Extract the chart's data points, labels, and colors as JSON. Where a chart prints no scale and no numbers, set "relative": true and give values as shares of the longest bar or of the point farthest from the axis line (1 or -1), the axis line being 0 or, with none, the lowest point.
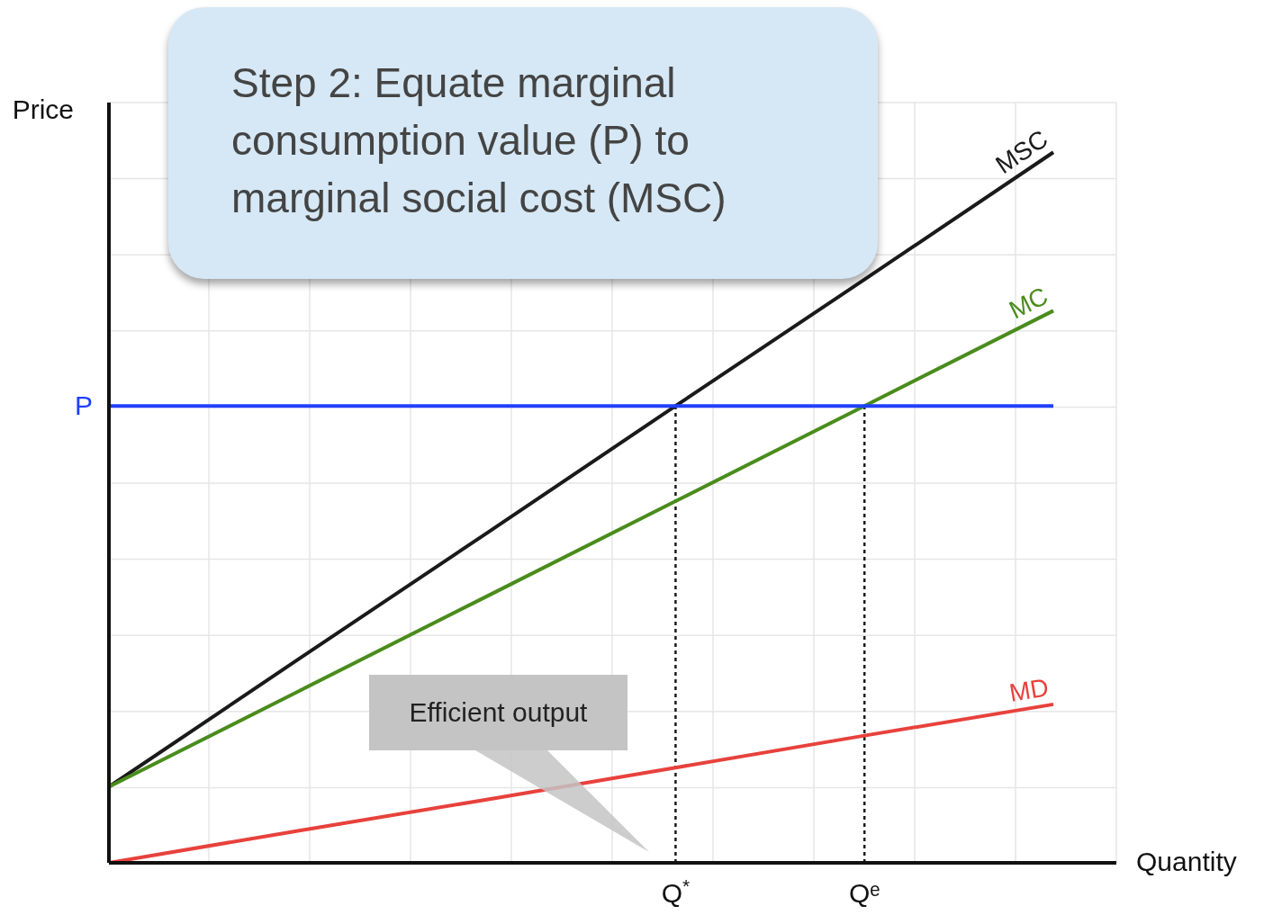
{
  "chart_data": {
    "type": "line",
    "relative": true,
    "xlabel": "Quantity",
    "ylabel": "Price",
    "tick_labels": "x",
    "grid": true,
    "marker": "none",
    "line_style": "solid",
    "categories": [
      null,
      null,
      null,
      "Q$^{*}$",
      "Qᵉ",
      null
    ],
    "series": [
      {
        "name": "MSC",
        "color": "#1a1a1a",
        "values": [
          0.107,
          0.286,
          0.464,
          0.643,
          0.821,
          1
        ]
      },
      {
        "name": "MC",
        "color": "#4a8c1c",
        "values": [
          0.107,
          0.241,
          0.375,
          0.509,
          0.643,
          0.777
        ]
      },
      {
        "name": "MD",
        "color": "#e8413c",
        "values": [
          0,
          0.045,
          0.089,
          0.134,
          0.179,
          0.223
        ]
      },
      {
        "name": "P",
        "color": "#1f3fff",
        "values": [
          0.643,
          0.643,
          0.643,
          0.643,
          0.643,
          0.643
        ]
      }
    ],
    "ref_lines": [
      {
        "axis": "x",
        "value": "Q$^{*}$",
        "color": "#1a1a1a",
        "line_style": "dashed"
      },
      {
        "axis": "x",
        "value": "Qᵉ",
        "color": "#1a1a1a",
        "line_style": "dashed"
      }
    ],
    "annotations": [
      "Step 2: Equate marginal consumption value (P) to marginal social cost (MSC)",
      "Efficient output"
    ]
  }
}
